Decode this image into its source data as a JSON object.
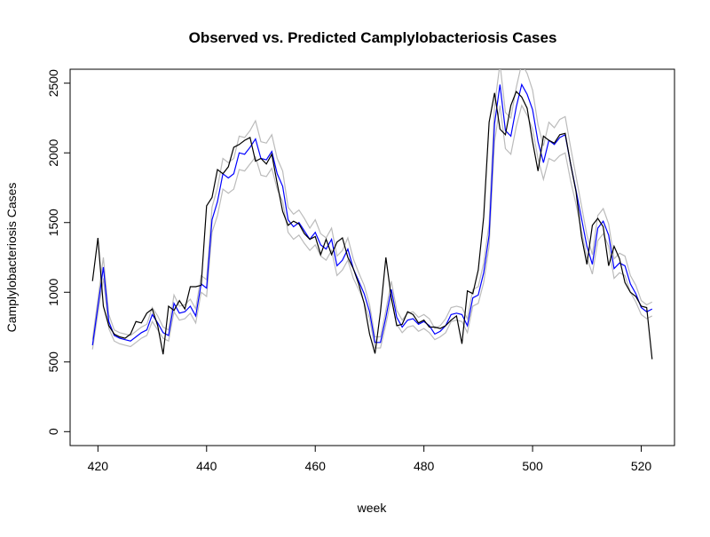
{
  "chart_data": {
    "type": "line",
    "title": "Observed vs. Predicted Camplylobacteriosis Cases",
    "xlabel": "week",
    "ylabel": "Camplylobacteriosis Cases",
    "x": [
      419,
      420,
      421,
      422,
      423,
      424,
      425,
      426,
      427,
      428,
      429,
      430,
      431,
      432,
      433,
      434,
      435,
      436,
      437,
      438,
      439,
      440,
      441,
      442,
      443,
      444,
      445,
      446,
      447,
      448,
      449,
      450,
      451,
      452,
      453,
      454,
      455,
      456,
      457,
      458,
      459,
      460,
      461,
      462,
      463,
      464,
      465,
      466,
      467,
      468,
      469,
      470,
      471,
      472,
      473,
      474,
      475,
      476,
      477,
      478,
      479,
      480,
      481,
      482,
      483,
      484,
      485,
      486,
      487,
      488,
      489,
      490,
      491,
      492,
      493,
      494,
      495,
      496,
      497,
      498,
      499,
      500,
      501,
      502,
      503,
      504,
      505,
      506,
      507,
      508,
      509,
      510,
      511,
      512,
      513,
      514,
      515,
      516,
      517,
      518,
      519,
      520,
      521,
      522
    ],
    "series": [
      {
        "color": "#bbbbbb",
        "values": [
          590,
          850,
          1100,
          740,
          650,
          630,
          620,
          610,
          640,
          670,
          690,
          790,
          730,
          670,
          650,
          860,
          800,
          810,
          850,
          780,
          1000,
          970,
          1430,
          1550,
          1740,
          1710,
          1740,
          1880,
          1870,
          1920,
          1970,
          1840,
          1830,
          1890,
          1740,
          1650,
          1430,
          1380,
          1410,
          1350,
          1300,
          1340,
          1260,
          1230,
          1300,
          1120,
          1160,
          1230,
          1100,
          1020,
          930,
          810,
          600,
          600,
          770,
          960,
          770,
          710,
          750,
          760,
          720,
          740,
          710,
          660,
          680,
          710,
          790,
          800,
          790,
          710,
          900,
          920,
          1070,
          1330,
          2080,
          2340,
          2030,
          1990,
          2190,
          2340,
          2270,
          2170,
          1960,
          1810,
          1960,
          1940,
          1980,
          2000,
          1800,
          1630,
          1440,
          1250,
          1130,
          1370,
          1420,
          1330,
          1100,
          1140,
          1120,
          1000,
          930,
          840,
          810,
          830
        ]
      },
      {
        "color": "#bbbbbb",
        "values": [
          660,
          950,
          1250,
          840,
          730,
          710,
          700,
          690,
          720,
          750,
          770,
          890,
          830,
          750,
          730,
          980,
          900,
          910,
          950,
          880,
          1120,
          1090,
          1610,
          1750,
          1960,
          1930,
          1960,
          2120,
          2110,
          2160,
          2230,
          2080,
          2070,
          2130,
          1960,
          1870,
          1610,
          1560,
          1590,
          1530,
          1460,
          1520,
          1420,
          1390,
          1460,
          1260,
          1300,
          1390,
          1240,
          1140,
          1050,
          910,
          680,
          680,
          870,
          1080,
          870,
          800,
          850,
          860,
          820,
          840,
          810,
          740,
          760,
          810,
          890,
          900,
          890,
          810,
          1020,
          1040,
          1210,
          1490,
          2340,
          2640,
          2290,
          2250,
          2470,
          2640,
          2570,
          2450,
          2200,
          2050,
          2220,
          2180,
          2240,
          2260,
          2040,
          1830,
          1620,
          1410,
          1270,
          1550,
          1600,
          1490,
          1240,
          1280,
          1260,
          1120,
          1050,
          940,
          910,
          930
        ]
      },
      {
        "color": "#0000ff",
        "values": [
          620,
          900,
          1180,
          790,
          690,
          670,
          660,
          650,
          680,
          710,
          730,
          840,
          780,
          710,
          690,
          920,
          850,
          860,
          900,
          830,
          1060,
          1030,
          1520,
          1650,
          1850,
          1820,
          1850,
          2000,
          1990,
          2040,
          2100,
          1960,
          1950,
          2010,
          1850,
          1760,
          1520,
          1470,
          1500,
          1440,
          1380,
          1430,
          1340,
          1310,
          1380,
          1190,
          1230,
          1310,
          1170,
          1080,
          990,
          860,
          640,
          640,
          820,
          1020,
          820,
          750,
          800,
          810,
          770,
          790,
          760,
          700,
          720,
          760,
          840,
          850,
          840,
          760,
          960,
          980,
          1140,
          1410,
          2210,
          2490,
          2160,
          2120,
          2330,
          2490,
          2420,
          2310,
          2080,
          1930,
          2090,
          2060,
          2110,
          2130,
          1920,
          1730,
          1530,
          1330,
          1200,
          1460,
          1510,
          1410,
          1170,
          1210,
          1190,
          1060,
          990,
          890,
          860,
          880
        ]
      },
      {
        "color": "#000000",
        "values": [
          1080,
          1390,
          900,
          760,
          700,
          680,
          670,
          700,
          790,
          780,
          850,
          880,
          760,
          555,
          900,
          870,
          940,
          880,
          1040,
          1040,
          1050,
          1620,
          1680,
          1880,
          1850,
          1900,
          2040,
          2060,
          2090,
          2110,
          1940,
          1960,
          1920,
          1990,
          1780,
          1580,
          1480,
          1510,
          1490,
          1420,
          1380,
          1400,
          1270,
          1380,
          1270,
          1360,
          1390,
          1250,
          1170,
          1060,
          920,
          700,
          560,
          860,
          1250,
          960,
          760,
          770,
          860,
          840,
          780,
          800,
          750,
          750,
          740,
          760,
          800,
          830,
          630,
          1010,
          990,
          1160,
          1540,
          2220,
          2430,
          2170,
          2130,
          2340,
          2440,
          2400,
          2320,
          2080,
          1870,
          2120,
          2090,
          2070,
          2130,
          2140,
          1920,
          1720,
          1400,
          1200,
          1480,
          1530,
          1470,
          1190,
          1330,
          1240,
          1070,
          1000,
          970,
          900,
          890,
          520
        ]
      }
    ],
    "xlim": [
      414.88,
      526.12
    ],
    "xticks": [
      420,
      440,
      460,
      480,
      500,
      520
    ],
    "ylim": [
      -100,
      2600
    ],
    "yticks": [
      0,
      500,
      1000,
      1500,
      2000,
      2500
    ]
  }
}
